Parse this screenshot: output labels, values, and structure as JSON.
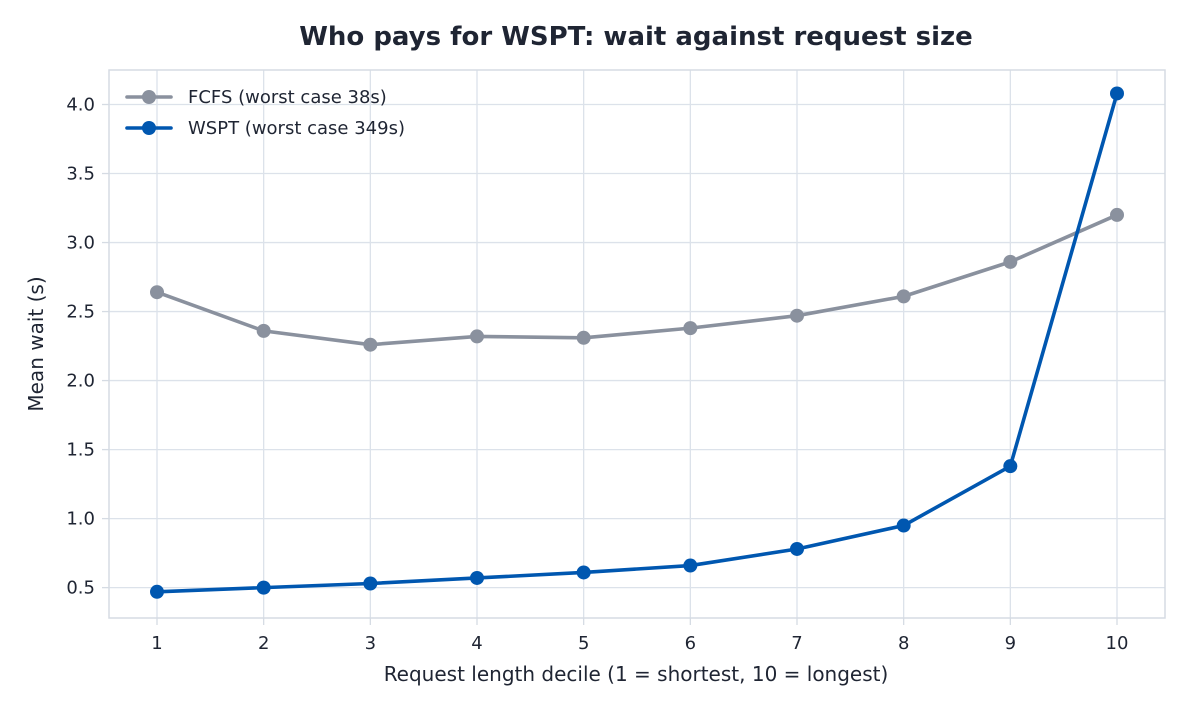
{
  "chart_data": {
    "type": "line",
    "title": "Who pays for WSPT: wait against request size",
    "xlabel": "Request length decile (1 = shortest, 10 = longest)",
    "ylabel": "Mean wait (s)",
    "x": [
      1,
      2,
      3,
      4,
      5,
      6,
      7,
      8,
      9,
      10
    ],
    "xticks": [
      "1",
      "2",
      "3",
      "4",
      "5",
      "6",
      "7",
      "8",
      "9",
      "10"
    ],
    "xlim": [
      0.55,
      10.45
    ],
    "ylim": [
      0.28,
      4.25
    ],
    "yticks": [
      0.5,
      1.0,
      1.5,
      2.0,
      2.5,
      3.0,
      3.5,
      4.0
    ],
    "yticklabels": [
      "0.5",
      "1.0",
      "1.5",
      "2.0",
      "2.5",
      "3.0",
      "3.5",
      "4.0"
    ],
    "grid": true,
    "legend_position": "top-left",
    "series": [
      {
        "name": "FCFS (worst case 38s)",
        "color": "#8a919e",
        "values": [
          2.64,
          2.36,
          2.26,
          2.32,
          2.31,
          2.38,
          2.47,
          2.61,
          2.86,
          3.2
        ]
      },
      {
        "name": "WSPT (worst case 349s)",
        "color": "#0057b0",
        "values": [
          0.47,
          0.5,
          0.53,
          0.57,
          0.61,
          0.66,
          0.78,
          0.95,
          1.38,
          4.08
        ]
      }
    ]
  }
}
